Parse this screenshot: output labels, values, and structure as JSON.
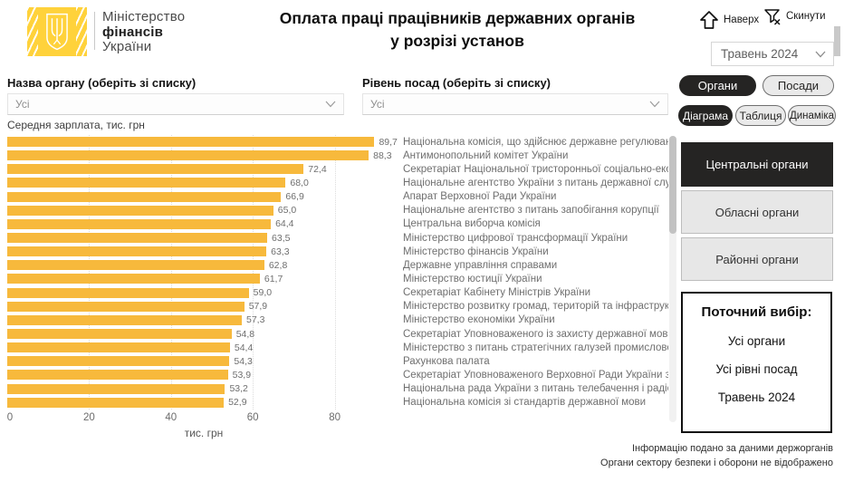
{
  "header": {
    "logo": {
      "line1": "Міністерство",
      "line2": "фінансів",
      "line3": "України"
    },
    "title_line1": "Оплата праці працівників державних органів",
    "title_line2": "у розрізі установ",
    "nav_up_label": "Наверх",
    "reset_label": "Скинути",
    "period_value": "Травень 2024"
  },
  "filters": {
    "organ_label": "Назва органу (оберіть зі списку)",
    "organ_value": "Усі",
    "level_label": "Рівень посад (оберіть зі списку)",
    "level_value": "Усі",
    "view_toggle": {
      "organs": "Органи",
      "positions": "Посади"
    },
    "display_toggle": {
      "chart": "Діаграма",
      "table": "Таблиця",
      "dynamics": "Динаміка"
    }
  },
  "chart_data": {
    "type": "bar",
    "orientation": "horizontal",
    "title": "Середня зарплата, тис. грн",
    "xlabel": "тис. грн",
    "xlim": [
      0,
      90
    ],
    "xticks": [
      0,
      20,
      40,
      60,
      80
    ],
    "grid": "vertical-dotted",
    "bar_color": "#F7B93C",
    "categories": [
      "Національна комісія, що здійснює державне регулюванн...",
      "Антимонопольний комітет України",
      "Секретаріат Національної тристоронньої соціально-еко...",
      "Національне агентство України з питань державної слу...",
      "Апарат Верховної Ради України",
      "Національне агентство з питань запобігання корупції",
      "Центральна виборча комісія",
      "Міністерство цифрової трансформації України",
      "Міністерство фінансів України",
      "Державне управління справами",
      "Міністерство юстиції України",
      "Секретаріат Кабінету Міністрів України",
      "Міністерство розвитку громад, територій та інфраструк...",
      "Міністерство економіки України",
      "Секретаріат Уповноваженого із захисту державної мови",
      "Міністерство з питань стратегічних галузей промислово...",
      "Рахункова палата",
      "Секретаріат Уповноваженого Верховної Ради України з...",
      "Національна рада України з питань телебачення і радіо...",
      "Національна комісія зі стандартів державної мови"
    ],
    "values": [
      89.7,
      88.3,
      72.4,
      68.0,
      66.9,
      65.0,
      64.4,
      63.5,
      63.3,
      62.8,
      61.7,
      59.0,
      57.9,
      57.3,
      54.8,
      54.4,
      54.3,
      53.9,
      53.2,
      52.9
    ],
    "value_labels": [
      "89,7",
      "88,3",
      "72,4",
      "68,0",
      "66,9",
      "65,0",
      "64,4",
      "63,5",
      "63,3",
      "62,8",
      "61,7",
      "59,0",
      "57,9",
      "57,3",
      "54,8",
      "54,4",
      "54,3",
      "53,9",
      "53,2",
      "52,9"
    ]
  },
  "right_panel": {
    "central_label": "Центральні органи",
    "oblast_label": "Обласні органи",
    "rayon_label": "Районні органи",
    "current_selection": {
      "title": "Поточний вибір:",
      "item1": "Усі органи",
      "item2": "Усі рівні посад",
      "item3": "Травень 2024"
    }
  },
  "footer": {
    "line1": "Інформацію подано за даними держорганів",
    "line2": "Органи сектору безпеки і оборони не відображено"
  },
  "colors": {
    "bar_yellow": "#F7B93C",
    "logo_yellow": "#FFD23B",
    "dark_button": "#252423",
    "light_button": "#EAEAEA"
  }
}
